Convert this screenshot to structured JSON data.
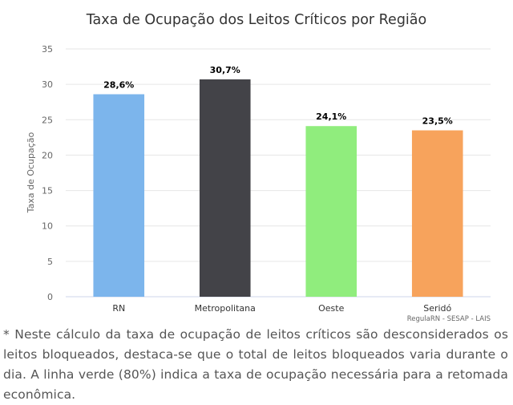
{
  "chart_data": {
    "type": "bar",
    "title": "Taxa de Ocupação dos Leitos Críticos por Região",
    "ylabel": "Taxa de Ocupação",
    "xlabel": "",
    "categories": [
      "RN",
      "Metropolitana",
      "Oeste",
      "Seridó"
    ],
    "values": [
      28.6,
      30.7,
      24.1,
      23.5
    ],
    "data_labels": [
      "28,6%",
      "30,7%",
      "24,1%",
      "23,5%"
    ],
    "colors": [
      "#7cb5ec",
      "#434348",
      "#90ed7d",
      "#f7a35c"
    ],
    "ylim": [
      0,
      35
    ],
    "yticks": [
      0,
      5,
      10,
      15,
      20,
      25,
      30,
      35
    ],
    "grid": true,
    "legend": "none",
    "credits": "RegulaRN - SESAP - LAIS"
  },
  "footnote": "* Neste cálculo da taxa de ocupação de leitos críticos são desconsiderados os leitos bloqueados, destaca-se que o total de leitos bloqueados varia durante o dia. A linha verde (80%) indica a taxa de ocupação necessária para a retomada econômica."
}
